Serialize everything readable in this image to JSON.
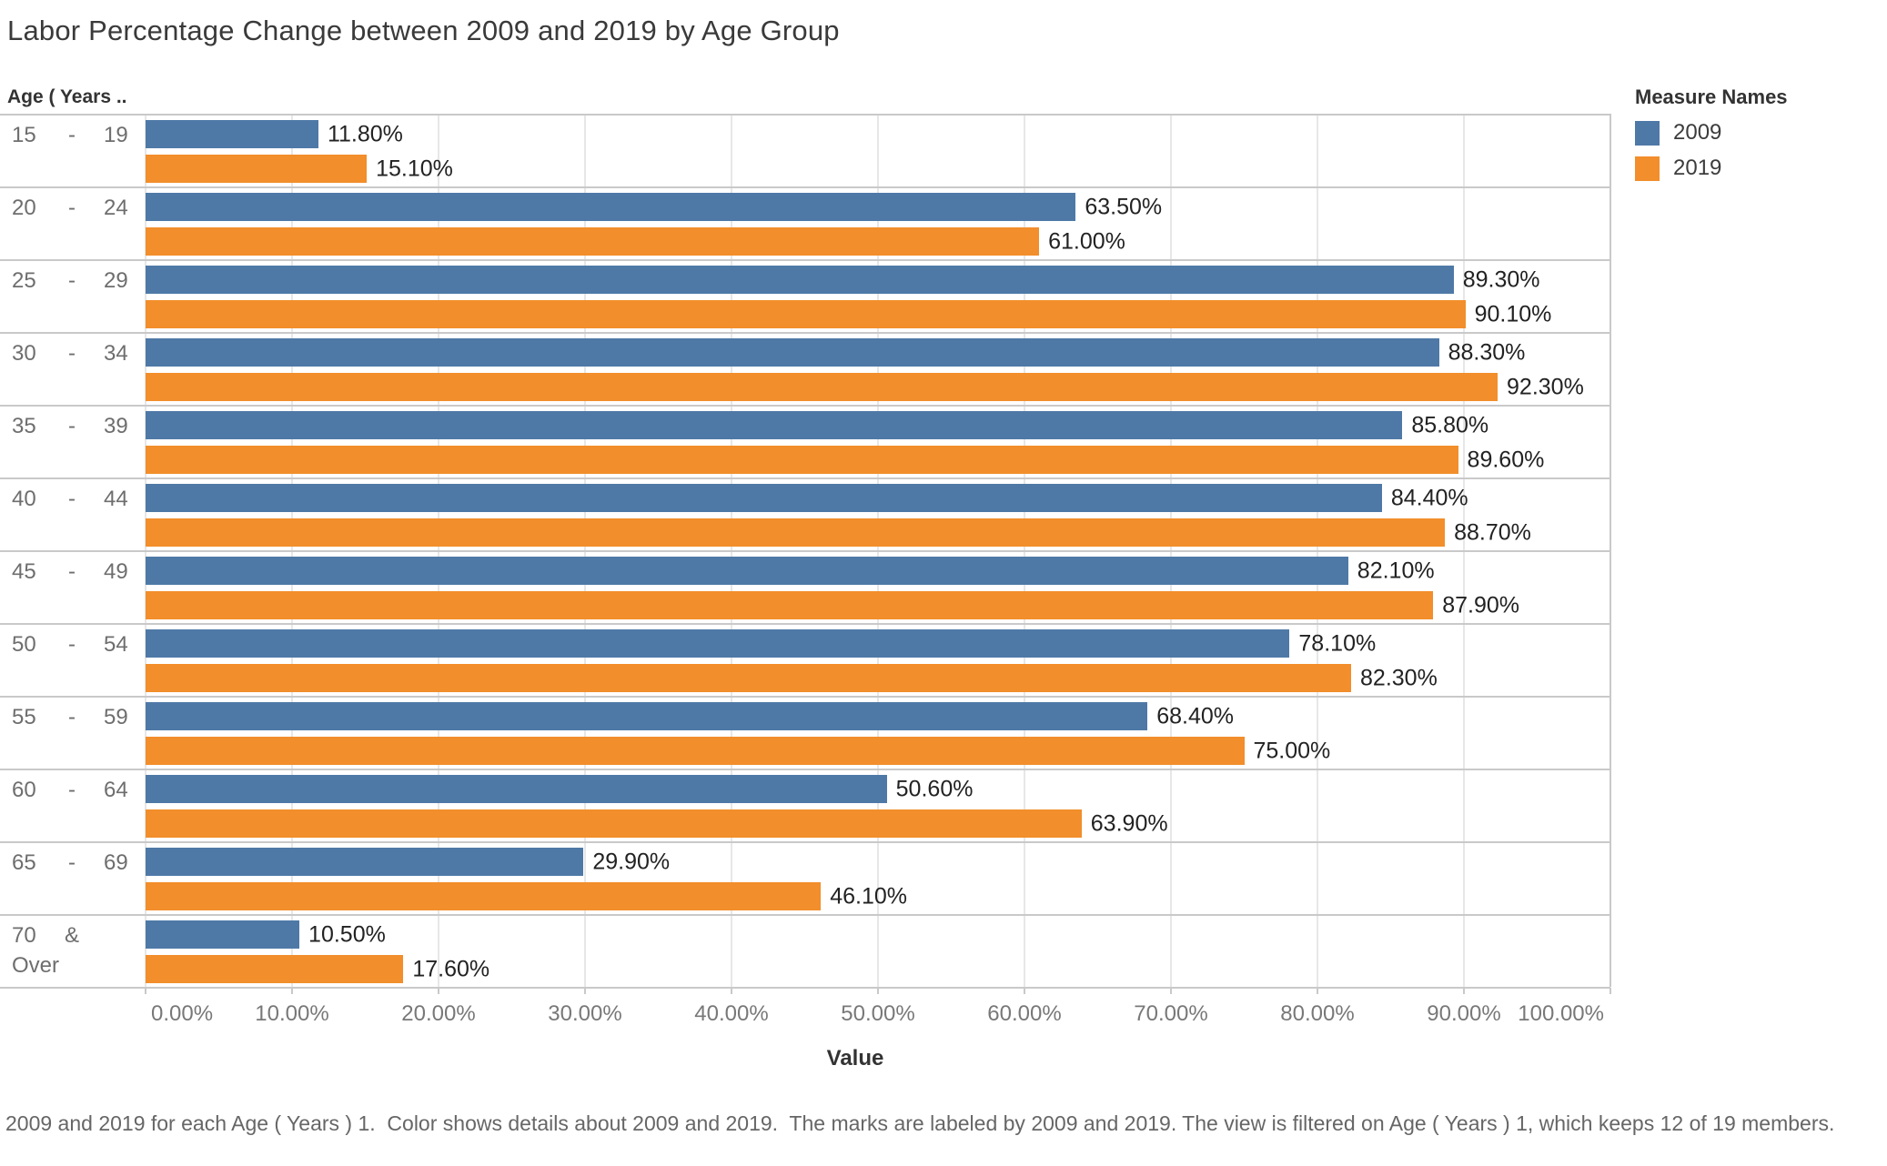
{
  "title": "Labor Percentage Change between 2009 and 2019 by Age Group",
  "row_header": "Age ( Years ..",
  "legend": {
    "title": "Measure Names"
  },
  "caption": "2009 and 2019 for each Age ( Years ) 1.  Color shows details about 2009 and 2019.  The marks are labeled by 2009 and 2019. The view is filtered on Age ( Years ) 1, which keeps 12 of 19 members.",
  "chart_data": {
    "type": "bar",
    "orientation": "horizontal",
    "title": "Labor Percentage Change between 2009 and 2019 by Age Group",
    "xlabel": "Value",
    "ylabel": "Age ( Years ..",
    "xlim": [
      0,
      100
    ],
    "grid": true,
    "legend_position": "top-right",
    "x_tick_labels": [
      "0.00%",
      "10.00%",
      "20.00%",
      "30.00%",
      "40.00%",
      "50.00%",
      "60.00%",
      "70.00%",
      "80.00%",
      "90.00%",
      "100.00%"
    ],
    "categories": [
      "15 - 19",
      "20 - 24",
      "25 - 29",
      "30 - 34",
      "35 - 39",
      "40 - 44",
      "45 - 49",
      "50 - 54",
      "55 - 59",
      "60 - 64",
      "65 - 69",
      "70 & Over"
    ],
    "row_labels": [
      {
        "start": "15",
        "sep": "-",
        "end": "19"
      },
      {
        "start": "20",
        "sep": "-",
        "end": "24"
      },
      {
        "start": "25",
        "sep": "-",
        "end": "29"
      },
      {
        "start": "30",
        "sep": "-",
        "end": "34"
      },
      {
        "start": "35",
        "sep": "-",
        "end": "39"
      },
      {
        "start": "40",
        "sep": "-",
        "end": "44"
      },
      {
        "start": "45",
        "sep": "-",
        "end": "49"
      },
      {
        "start": "50",
        "sep": "-",
        "end": "54"
      },
      {
        "start": "55",
        "sep": "-",
        "end": "59"
      },
      {
        "start": "60",
        "sep": "-",
        "end": "64"
      },
      {
        "start": "65",
        "sep": "-",
        "end": "69"
      },
      {
        "start": "70",
        "sep": "&",
        "end": "Over",
        "wrap": true
      }
    ],
    "series": [
      {
        "name": "2009",
        "color": "#4e79a7",
        "values": [
          11.8,
          63.5,
          89.3,
          88.3,
          85.8,
          84.4,
          82.1,
          78.1,
          68.4,
          50.6,
          29.9,
          10.5
        ]
      },
      {
        "name": "2019",
        "color": "#f28e2b",
        "values": [
          15.1,
          61.0,
          90.1,
          92.3,
          89.6,
          88.7,
          87.9,
          82.3,
          75.0,
          63.9,
          46.1,
          17.6
        ]
      }
    ],
    "bar_labels": [
      [
        "11.80%",
        "15.10%"
      ],
      [
        "63.50%",
        "61.00%"
      ],
      [
        "89.30%",
        "90.10%"
      ],
      [
        "88.30%",
        "92.30%"
      ],
      [
        "85.80%",
        "89.60%"
      ],
      [
        "84.40%",
        "88.70%"
      ],
      [
        "82.10%",
        "87.90%"
      ],
      [
        "78.10%",
        "82.30%"
      ],
      [
        "68.40%",
        "75.00%"
      ],
      [
        "50.60%",
        "63.90%"
      ],
      [
        "29.90%",
        "46.10%"
      ],
      [
        "10.50%",
        "17.60%"
      ]
    ]
  }
}
